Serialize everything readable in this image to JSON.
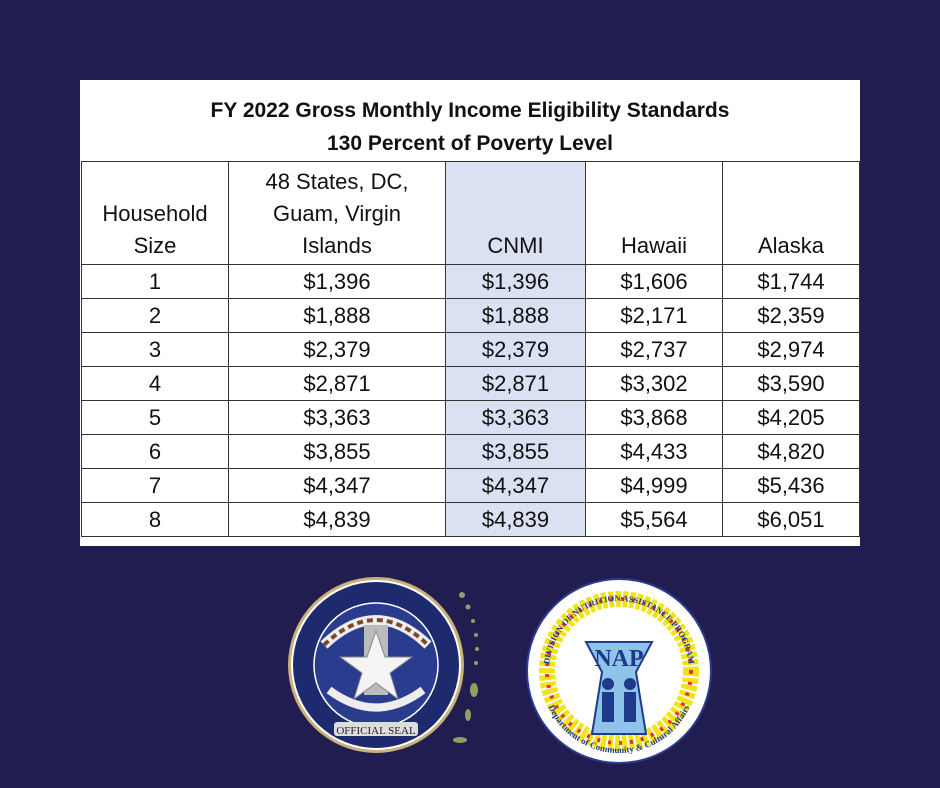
{
  "title_line1": "FY 2022 Gross Monthly Income Eligibility Standards",
  "title_line2": "130 Percent of Poverty Level",
  "headers": [
    "Household Size",
    "48 States, DC, Guam, Virgin Islands",
    "CNMI",
    "Hawaii",
    "Alaska"
  ],
  "header_lines": {
    "household": [
      "Household",
      "Size"
    ],
    "states": [
      "48 States, DC,",
      "Guam, Virgin",
      "Islands"
    ]
  },
  "rows": [
    [
      "1",
      "$1,396",
      "$1,396",
      "$1,606",
      "$1,744"
    ],
    [
      "2",
      "$1,888",
      "$1,888",
      "$2,171",
      "$2,359"
    ],
    [
      "3",
      "$2,379",
      "$2,379",
      "$2,737",
      "$2,974"
    ],
    [
      "4",
      "$2,871",
      "$2,871",
      "$3,302",
      "$3,590"
    ],
    [
      "5",
      "$3,363",
      "$3,363",
      "$3,868",
      "$4,205"
    ],
    [
      "6",
      "$3,855",
      "$3,855",
      "$4,433",
      "$4,820"
    ],
    [
      "7",
      "$4,347",
      "$4,347",
      "$4,999",
      "$5,436"
    ],
    [
      "8",
      "$4,839",
      "$4,839",
      "$5,564",
      "$6,051"
    ]
  ],
  "colors": {
    "background": "#211d50",
    "highlight_column": "#d9e1f2"
  },
  "logos": {
    "cnmi_seal": "COMMONWEALTH OF THE NORTHERN MARIANA ISLANDS OFFICIAL SEAL",
    "nap_seal": "DIVISION OF NUTRITION ASSISTANCE PROGRAM NAP Department of Community & Cultural Affairs"
  }
}
